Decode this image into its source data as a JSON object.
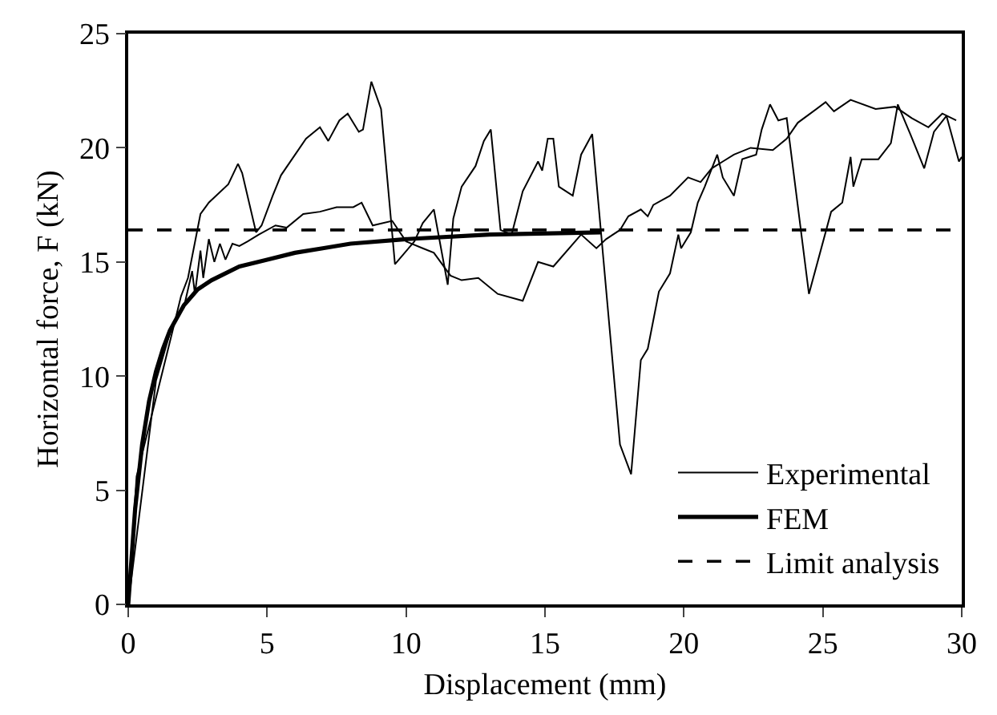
{
  "chart_data": {
    "type": "line",
    "xlabel": "Displacement (mm)",
    "ylabel": "Horizontal force, F (kN)",
    "xlim": [
      0,
      30
    ],
    "xticks": [
      0,
      5,
      10,
      15,
      20,
      25,
      30
    ],
    "ylim": [
      0,
      25
    ],
    "yticks": [
      0,
      5,
      10,
      15,
      20,
      25
    ],
    "grid": false,
    "legend": "bottom right",
    "marker": "none",
    "series": [
      {
        "name": "Experimental",
        "color": "#000000",
        "line_style": "solid",
        "x": [
          0,
          0.3,
          1.6,
          1.9,
          2.15,
          2.6,
          2.9,
          3.6,
          3.95,
          4.1,
          4.6,
          4.8,
          5.2,
          5.5,
          6.4,
          6.9,
          7.2,
          7.6,
          7.9,
          8.3,
          8.45,
          8.75,
          9.1,
          9.6,
          10.3,
          10.6,
          11.0,
          11.5,
          11.7,
          12.0,
          12.5,
          12.8,
          13.05,
          13.4,
          13.8,
          14.2,
          14.75,
          14.9,
          15.1,
          15.3,
          15.5,
          16.0,
          16.3,
          16.7,
          17.7,
          18.1,
          18.45,
          18.7,
          19.1,
          19.5,
          19.8,
          19.9,
          20.25,
          20.5,
          20.75,
          21.2,
          21.4,
          21.8,
          22.1,
          22.6,
          22.8,
          23.1,
          23.4,
          23.7,
          24.5,
          25.3,
          25.7,
          26.0,
          26.1,
          26.4,
          27.0,
          27.45,
          27.7,
          28.15,
          28.65,
          29.0,
          29.45,
          29.9,
          30
        ],
        "values": [
          0,
          5.6,
          12,
          13.5,
          14.3,
          17.1,
          17.6,
          18.4,
          19.3,
          18.9,
          16.3,
          16.6,
          17.9,
          18.8,
          20.4,
          20.9,
          20.3,
          21.2,
          21.5,
          20.7,
          20.8,
          22.9,
          21.7,
          14.9,
          15.9,
          16.7,
          17.3,
          14.0,
          16.9,
          18.3,
          19.2,
          20.3,
          20.8,
          16.4,
          16.2,
          18.1,
          19.4,
          19.0,
          20.4,
          20.4,
          18.3,
          17.9,
          19.7,
          20.6,
          7.0,
          5.7,
          10.7,
          11.2,
          13.7,
          14.5,
          16.2,
          15.6,
          16.3,
          17.6,
          18.3,
          19.7,
          18.7,
          17.9,
          19.5,
          19.7,
          20.8,
          21.9,
          21.2,
          21.3,
          13.6,
          17.2,
          17.6,
          19.6,
          18.3,
          19.5,
          19.5,
          20.2,
          21.9,
          20.6,
          19.1,
          20.7,
          21.4,
          19.4,
          19.6
        ]
      },
      {
        "color": "#000000",
        "line_style": "solid",
        "x": [
          0,
          1.0,
          1.6,
          2.0,
          2.3,
          2.4,
          2.6,
          2.7,
          2.9,
          3.1,
          3.3,
          3.5,
          3.75,
          4.0,
          4.3,
          4.7,
          5.3,
          5.7,
          6.3,
          6.9,
          7.5,
          8.1,
          8.4,
          8.8,
          9.5,
          10.0,
          10.6,
          11.0,
          11.6,
          12.0,
          12.6,
          13.3,
          14.2,
          14.75,
          15.3,
          16.3,
          16.85,
          17.2,
          17.7,
          18.0,
          18.45,
          18.7,
          18.9,
          19.5,
          20.15,
          20.6,
          21.0,
          21.4,
          21.8,
          22.4,
          23.2,
          23.7,
          24.1,
          24.55,
          25.1,
          25.4,
          26.0,
          26.9,
          27.6,
          28.2,
          28.8,
          29.3,
          29.8
        ],
        "values": [
          0,
          9.8,
          12.3,
          13.0,
          14.6,
          13.6,
          15.5,
          14.3,
          16.0,
          15.0,
          15.8,
          15.1,
          15.8,
          15.7,
          15.9,
          16.2,
          16.6,
          16.5,
          17.1,
          17.2,
          17.4,
          17.4,
          17.6,
          16.6,
          16.8,
          15.9,
          15.6,
          15.4,
          14.4,
          14.2,
          14.3,
          13.6,
          13.3,
          15.0,
          14.8,
          16.2,
          15.6,
          16.0,
          16.4,
          17.0,
          17.3,
          17.0,
          17.5,
          17.9,
          18.7,
          18.5,
          19.1,
          19.4,
          19.7,
          20.0,
          19.9,
          20.4,
          21.1,
          21.5,
          22.0,
          21.6,
          22.1,
          21.7,
          21.8,
          21.3,
          20.9,
          21.5,
          21.2
        ]
      },
      {
        "name": "FEM",
        "color": "#000000",
        "line_style": "solid",
        "x": [
          0,
          0.25,
          0.5,
          0.75,
          1,
          1.25,
          1.5,
          2,
          2.5,
          3,
          4,
          5,
          6,
          7,
          8,
          10,
          13,
          17
        ],
        "values": [
          0,
          4.2,
          7.0,
          8.9,
          10.2,
          11.2,
          12.0,
          13.1,
          13.8,
          14.2,
          14.8,
          15.1,
          15.4,
          15.6,
          15.8,
          16.0,
          16.2,
          16.3
        ]
      }
    ],
    "ref_lines": [
      {
        "axis": "y",
        "value": 16.4,
        "label": "Limit analysis",
        "color": "#000000",
        "line_style": "dashed"
      }
    ]
  }
}
